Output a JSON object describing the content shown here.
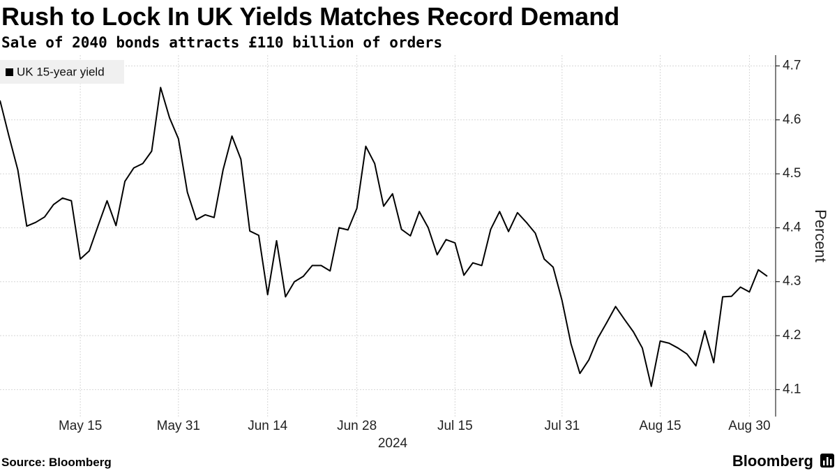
{
  "chart_data": {
    "type": "line",
    "title": "Rush to Lock In UK Yields Matches Record Demand",
    "subtitle": "Sale of 2040 bonds attracts £110 billion of orders",
    "ylabel": "Percent",
    "x_year_label": "2024",
    "source": "Source: Bloomberg",
    "logo": "Bloomberg",
    "legend": "top-left",
    "grid": true,
    "x": [
      "2024-05-01",
      "2024-05-02",
      "2024-05-03",
      "2024-05-07",
      "2024-05-08",
      "2024-05-09",
      "2024-05-10",
      "2024-05-13",
      "2024-05-14",
      "2024-05-15",
      "2024-05-16",
      "2024-05-17",
      "2024-05-20",
      "2024-05-21",
      "2024-05-22",
      "2024-05-23",
      "2024-05-24",
      "2024-05-28",
      "2024-05-29",
      "2024-05-30",
      "2024-05-31",
      "2024-06-03",
      "2024-06-04",
      "2024-06-05",
      "2024-06-06",
      "2024-06-07",
      "2024-06-10",
      "2024-06-11",
      "2024-06-12",
      "2024-06-13",
      "2024-06-14",
      "2024-06-17",
      "2024-06-18",
      "2024-06-19",
      "2024-06-20",
      "2024-06-21",
      "2024-06-24",
      "2024-06-25",
      "2024-06-26",
      "2024-06-27",
      "2024-06-28",
      "2024-07-01",
      "2024-07-02",
      "2024-07-03",
      "2024-07-04",
      "2024-07-05",
      "2024-07-08",
      "2024-07-09",
      "2024-07-10",
      "2024-07-11",
      "2024-07-12",
      "2024-07-15",
      "2024-07-16",
      "2024-07-17",
      "2024-07-18",
      "2024-07-19",
      "2024-07-22",
      "2024-07-23",
      "2024-07-24",
      "2024-07-25",
      "2024-07-26",
      "2024-07-29",
      "2024-07-30",
      "2024-07-31",
      "2024-08-01",
      "2024-08-02",
      "2024-08-05",
      "2024-08-06",
      "2024-08-07",
      "2024-08-08",
      "2024-08-09",
      "2024-08-12",
      "2024-08-13",
      "2024-08-14",
      "2024-08-15",
      "2024-08-16",
      "2024-08-19",
      "2024-08-20",
      "2024-08-21",
      "2024-08-22",
      "2024-08-23",
      "2024-08-27",
      "2024-08-28",
      "2024-08-29",
      "2024-08-30",
      "2024-09-02",
      "2024-09-03"
    ],
    "series": [
      {
        "name": "UK 15-year yield",
        "color": "#000000",
        "values": [
          4.636,
          4.57,
          4.507,
          4.403,
          4.41,
          4.42,
          4.443,
          4.455,
          4.45,
          4.342,
          4.357,
          4.404,
          4.45,
          4.404,
          4.486,
          4.511,
          4.519,
          4.542,
          4.66,
          4.604,
          4.565,
          4.466,
          4.415,
          4.424,
          4.419,
          4.507,
          4.57,
          4.527,
          4.394,
          4.386,
          4.276,
          4.376,
          4.272,
          4.3,
          4.31,
          4.33,
          4.33,
          4.32,
          4.4,
          4.396,
          4.436,
          4.551,
          4.519,
          4.44,
          4.463,
          4.397,
          4.385,
          4.43,
          4.4,
          4.35,
          4.378,
          4.372,
          4.312,
          4.335,
          4.33,
          4.397,
          4.43,
          4.393,
          4.428,
          4.41,
          4.39,
          4.342,
          4.327,
          4.265,
          4.185,
          4.13,
          4.155,
          4.195,
          4.224,
          4.254,
          4.23,
          4.207,
          4.177,
          4.106,
          4.19,
          4.186,
          4.177,
          4.166,
          4.144,
          4.209,
          4.15,
          4.272,
          4.273,
          4.29,
          4.281,
          4.322,
          4.31
        ]
      }
    ],
    "xticks": [
      {
        "value": "2024-05-15",
        "label": "May 15"
      },
      {
        "value": "2024-05-31",
        "label": "May 31"
      },
      {
        "value": "2024-06-14",
        "label": "Jun 14"
      },
      {
        "value": "2024-06-28",
        "label": "Jun 28"
      },
      {
        "value": "2024-07-15",
        "label": "Jul 15"
      },
      {
        "value": "2024-07-31",
        "label": "Jul 31"
      },
      {
        "value": "2024-08-15",
        "label": "Aug 15"
      },
      {
        "value": "2024-08-30",
        "label": "Aug 30"
      }
    ],
    "ylim": [
      4.05,
      4.72
    ],
    "yticks": [
      4.1,
      4.2,
      4.3,
      4.4,
      4.5,
      4.6,
      4.7
    ]
  }
}
